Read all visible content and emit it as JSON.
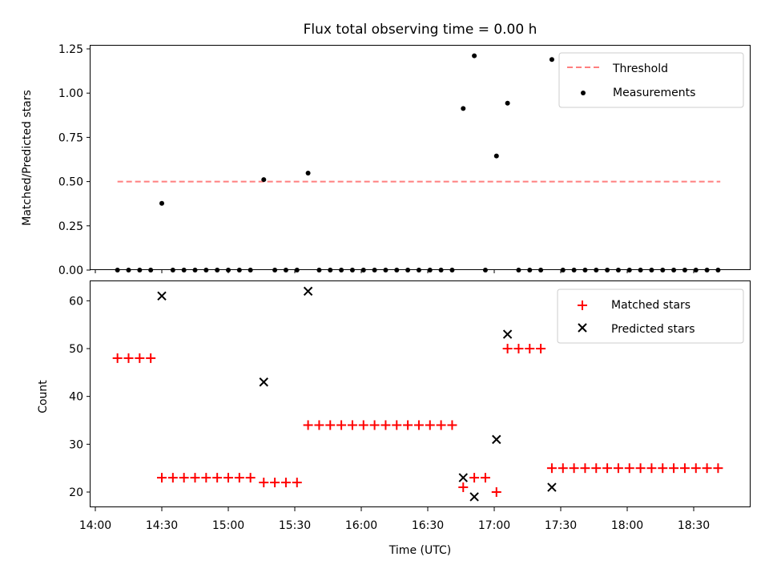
{
  "chart_data": [
    {
      "type": "scatter",
      "title": "Flux total observing time = 0.00 h",
      "xlabel": "",
      "ylabel": "Matched/Predicted stars",
      "x_type": "time",
      "xlim": [
        "14:00",
        "19:00"
      ],
      "ylim": [
        0,
        1.27
      ],
      "yticks": [
        "0.00",
        "0.25",
        "0.50",
        "0.75",
        "1.00",
        "1.25"
      ],
      "legend_position": "top-right",
      "series": [
        {
          "name": "Threshold",
          "kind": "dashed-line",
          "color": "#ff7f7f",
          "points": [
            [
              "14:10",
              0.5
            ],
            [
              "18:42",
              0.5
            ]
          ]
        },
        {
          "name": "Measurements",
          "kind": "dot",
          "color": "#000000",
          "points": [
            [
              "14:10",
              0
            ],
            [
              "14:15",
              0
            ],
            [
              "14:20",
              0
            ],
            [
              "14:25",
              0
            ],
            [
              "14:30",
              0.377
            ],
            [
              "14:35",
              0
            ],
            [
              "14:40",
              0
            ],
            [
              "14:45",
              0
            ],
            [
              "14:50",
              0
            ],
            [
              "14:55",
              0
            ],
            [
              "15:00",
              0
            ],
            [
              "15:05",
              0
            ],
            [
              "15:10",
              0
            ],
            [
              "15:16",
              0.511
            ],
            [
              "15:21",
              0
            ],
            [
              "15:26",
              0
            ],
            [
              "15:31",
              0
            ],
            [
              "15:36",
              0.548
            ],
            [
              "15:41",
              0
            ],
            [
              "15:46",
              0
            ],
            [
              "15:51",
              0
            ],
            [
              "15:56",
              0
            ],
            [
              "16:01",
              0
            ],
            [
              "16:06",
              0
            ],
            [
              "16:11",
              0
            ],
            [
              "16:16",
              0
            ],
            [
              "16:21",
              0
            ],
            [
              "16:26",
              0
            ],
            [
              "16:31",
              0
            ],
            [
              "16:36",
              0
            ],
            [
              "16:41",
              0
            ],
            [
              "16:46",
              0.913
            ],
            [
              "16:51",
              1.211
            ],
            [
              "16:56",
              0
            ],
            [
              "17:01",
              0.645
            ],
            [
              "17:06",
              0.943
            ],
            [
              "17:11",
              0
            ],
            [
              "17:16",
              0
            ],
            [
              "17:21",
              0
            ],
            [
              "17:26",
              1.19
            ],
            [
              "17:31",
              0
            ],
            [
              "17:36",
              0
            ],
            [
              "17:41",
              0
            ],
            [
              "17:46",
              0
            ],
            [
              "17:51",
              0
            ],
            [
              "17:56",
              0
            ],
            [
              "18:01",
              0
            ],
            [
              "18:06",
              0
            ],
            [
              "18:11",
              0
            ],
            [
              "18:16",
              0
            ],
            [
              "18:21",
              0
            ],
            [
              "18:26",
              0
            ],
            [
              "18:31",
              0
            ],
            [
              "18:36",
              0
            ],
            [
              "18:41",
              0
            ]
          ]
        }
      ]
    },
    {
      "type": "scatter",
      "title": "",
      "xlabel": "Time (UTC)",
      "ylabel": "Count",
      "x_type": "time",
      "xlim": [
        "14:00",
        "19:00"
      ],
      "ylim": [
        17,
        64
      ],
      "xticks": [
        "14:00",
        "14:30",
        "15:00",
        "15:30",
        "16:00",
        "16:30",
        "17:00",
        "17:30",
        "18:00",
        "18:30"
      ],
      "yticks": [
        "20",
        "30",
        "40",
        "50",
        "60"
      ],
      "legend_position": "top-right",
      "series": [
        {
          "name": "Matched stars",
          "kind": "plus",
          "color": "#ff0000",
          "points": [
            [
              "14:10",
              48
            ],
            [
              "14:15",
              48
            ],
            [
              "14:20",
              48
            ],
            [
              "14:25",
              48
            ],
            [
              "14:30",
              23
            ],
            [
              "14:35",
              23
            ],
            [
              "14:40",
              23
            ],
            [
              "14:45",
              23
            ],
            [
              "14:50",
              23
            ],
            [
              "14:55",
              23
            ],
            [
              "15:00",
              23
            ],
            [
              "15:05",
              23
            ],
            [
              "15:10",
              23
            ],
            [
              "15:16",
              22
            ],
            [
              "15:21",
              22
            ],
            [
              "15:26",
              22
            ],
            [
              "15:31",
              22
            ],
            [
              "15:36",
              34
            ],
            [
              "15:41",
              34
            ],
            [
              "15:46",
              34
            ],
            [
              "15:51",
              34
            ],
            [
              "15:56",
              34
            ],
            [
              "16:01",
              34
            ],
            [
              "16:06",
              34
            ],
            [
              "16:11",
              34
            ],
            [
              "16:16",
              34
            ],
            [
              "16:21",
              34
            ],
            [
              "16:26",
              34
            ],
            [
              "16:31",
              34
            ],
            [
              "16:36",
              34
            ],
            [
              "16:41",
              34
            ],
            [
              "16:46",
              21
            ],
            [
              "16:51",
              23
            ],
            [
              "16:56",
              23
            ],
            [
              "17:01",
              20
            ],
            [
              "17:06",
              50
            ],
            [
              "17:11",
              50
            ],
            [
              "17:16",
              50
            ],
            [
              "17:21",
              50
            ],
            [
              "17:26",
              25
            ],
            [
              "17:31",
              25
            ],
            [
              "17:36",
              25
            ],
            [
              "17:41",
              25
            ],
            [
              "17:46",
              25
            ],
            [
              "17:51",
              25
            ],
            [
              "17:56",
              25
            ],
            [
              "18:01",
              25
            ],
            [
              "18:06",
              25
            ],
            [
              "18:11",
              25
            ],
            [
              "18:16",
              25
            ],
            [
              "18:21",
              25
            ],
            [
              "18:26",
              25
            ],
            [
              "18:31",
              25
            ],
            [
              "18:36",
              25
            ],
            [
              "18:41",
              25
            ]
          ]
        },
        {
          "name": "Predicted stars",
          "kind": "x",
          "color": "#000000",
          "points": [
            [
              "14:30",
              61
            ],
            [
              "15:16",
              43
            ],
            [
              "15:36",
              62
            ],
            [
              "16:46",
              23
            ],
            [
              "16:51",
              19
            ],
            [
              "17:01",
              31
            ],
            [
              "17:06",
              53
            ],
            [
              "17:26",
              21
            ]
          ]
        }
      ]
    }
  ]
}
